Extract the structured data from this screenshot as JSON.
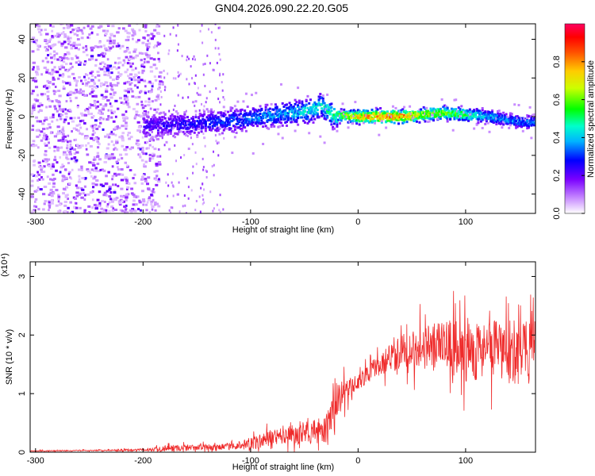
{
  "figure_title": "GN04.2026.090.22.20.G05",
  "chart_data": [
    {
      "type": "heatmap",
      "title": "GN04.2026.090.22.20.G05",
      "xlabel": "Height of straight line (km)",
      "ylabel": "Frequency (Hz)",
      "xlim": [
        -305,
        165
      ],
      "ylim": [
        -50,
        48
      ],
      "x_ticks": [
        -300,
        -200,
        -100,
        0,
        100
      ],
      "y_ticks": [
        -40,
        -20,
        0,
        20,
        40
      ],
      "x_tick_labels": [
        "-300",
        "-200",
        "-100",
        "0",
        "100"
      ],
      "y_tick_labels": [
        "-40",
        "-20",
        "0",
        "20",
        "40"
      ],
      "colorbar": {
        "label": "Normalized spectral amplitude",
        "range": [
          0,
          1
        ],
        "ticks": [
          0.0,
          0.2,
          0.4,
          0.6,
          0.8
        ],
        "tick_labels": [
          "0.0",
          "0.2",
          "0.4",
          "0.6",
          "0.8"
        ]
      },
      "ridge": {
        "x": [
          -200,
          -180,
          -160,
          -140,
          -120,
          -100,
          -80,
          -60,
          -45,
          -35,
          -25,
          0,
          20,
          40,
          60,
          80,
          100,
          120,
          140,
          160
        ],
        "frequency": [
          -5,
          -4,
          -4,
          -3,
          -2,
          -1,
          1,
          2,
          3,
          6,
          1,
          0,
          0,
          0,
          1,
          2,
          1,
          0,
          -2,
          -3
        ],
        "amplitude": [
          0.25,
          0.28,
          0.3,
          0.32,
          0.35,
          0.38,
          0.42,
          0.45,
          0.5,
          0.5,
          0.55,
          0.85,
          0.9,
          0.9,
          0.75,
          0.7,
          0.6,
          0.45,
          0.4,
          0.4
        ]
      }
    },
    {
      "type": "line",
      "xlabel": "Height of straight line (km)",
      "ylabel": "SNR (10 * v/v)",
      "y_scale_label": "(x10⁴)",
      "xlim": [
        -305,
        165
      ],
      "ylim": [
        0,
        3.25
      ],
      "x_ticks": [
        -300,
        -200,
        -100,
        0,
        100
      ],
      "y_ticks": [
        0,
        1,
        2,
        3
      ],
      "x_tick_labels": [
        "-300",
        "-200",
        "-100",
        "0",
        "100"
      ],
      "y_tick_labels": [
        "0",
        "1",
        "2",
        "3"
      ],
      "color": "#ef2b2b",
      "series": [
        {
          "name": "SNR",
          "envelope_x": [
            -305,
            -250,
            -200,
            -175,
            -150,
            -125,
            -100,
            -80,
            -60,
            -40,
            -30,
            -20,
            -10,
            0,
            10,
            20,
            40,
            60,
            80,
            100,
            120,
            140,
            160,
            165
          ],
          "envelope_mean": [
            0.02,
            0.03,
            0.04,
            0.07,
            0.08,
            0.09,
            0.14,
            0.25,
            0.3,
            0.35,
            0.4,
            0.9,
            1.05,
            1.2,
            1.35,
            1.5,
            1.7,
            1.8,
            1.78,
            1.75,
            1.75,
            1.7,
            1.7,
            1.75
          ],
          "envelope_spread": [
            0.01,
            0.01,
            0.02,
            0.06,
            0.05,
            0.05,
            0.1,
            0.15,
            0.18,
            0.2,
            0.25,
            0.3,
            0.2,
            0.15,
            0.15,
            0.2,
            0.3,
            0.4,
            0.45,
            0.55,
            0.5,
            0.55,
            0.55,
            0.5
          ]
        }
      ]
    }
  ]
}
